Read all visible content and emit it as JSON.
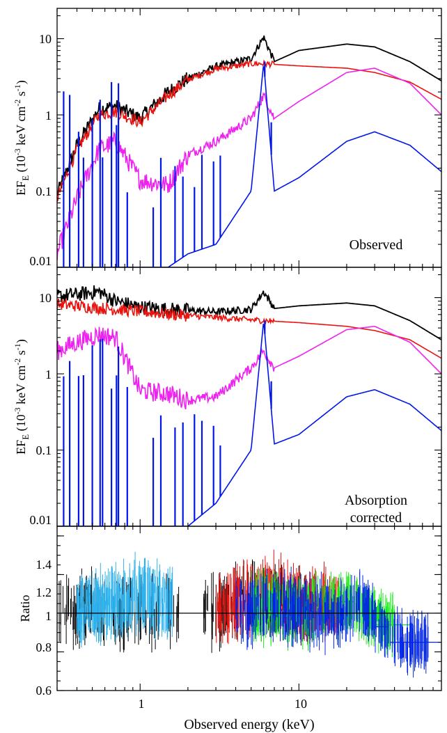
{
  "colors": {
    "total": "#000000",
    "powerlaw": "#e8140f",
    "reflection": "#ee22ee",
    "iron_component": "#0015e8",
    "data_black": "#000000",
    "data_red": "#e8140f",
    "data_lightblue": "#2eb2ee",
    "data_green": "#16ee16",
    "data_blue": "#0025e8"
  },
  "xaxis": {
    "label": "Observed energy (keV)",
    "ticks": [
      "1",
      "10"
    ],
    "scale": "log",
    "range": [
      0.3,
      79
    ]
  },
  "chart_data": [
    {
      "type": "line",
      "panel": "top",
      "annotation": "Observed",
      "ylabel_main": "EF",
      "ylabel_sub": "E",
      "ylabel_open": " (10",
      "ylabel_exp1": "-3",
      "ylabel_mid": " keV cm",
      "ylabel_exp2": "-2",
      "ylabel_mid2": " s",
      "ylabel_exp3": "-1",
      "ylabel_close": ")",
      "yscale": "log",
      "ylim": [
        0.01,
        25
      ],
      "yticks": [
        "10",
        "1",
        "0.1",
        "0.01"
      ],
      "x": [
        0.3,
        0.4,
        0.55,
        0.7,
        1.0,
        1.5,
        2.0,
        3.0,
        5.0,
        6.0,
        7.0,
        10,
        20,
        30,
        50,
        79
      ],
      "series": [
        {
          "values": [
            0.09,
            0.4,
            1.2,
            1.3,
            0.9,
            2.0,
            3.0,
            4.3,
            5.5,
            10.5,
            5.0,
            7.0,
            8.5,
            7.8,
            5.0,
            2.8
          ]
        },
        {
          "values": [
            0.08,
            0.35,
            1.0,
            1.1,
            0.8,
            1.8,
            2.9,
            4.0,
            4.7,
            4.7,
            4.6,
            4.4,
            4.1,
            3.6,
            2.7,
            1.6
          ]
        },
        {
          "values": [
            0.015,
            0.08,
            0.35,
            0.45,
            0.14,
            0.12,
            0.3,
            0.45,
            0.9,
            1.8,
            0.9,
            1.5,
            3.6,
            4.1,
            2.6,
            1.0
          ]
        },
        {
          "values": [
            0.01,
            0.01,
            0.01,
            0.01,
            0.01,
            0.01,
            0.015,
            0.02,
            0.1,
            4.8,
            0.1,
            0.15,
            0.45,
            0.6,
            0.4,
            0.18
          ]
        }
      ]
    },
    {
      "type": "line",
      "panel": "middle",
      "annotation_line1": "Absorption",
      "annotation_line2": "corrected",
      "ylabel_main": "EF",
      "ylabel_sub": "E",
      "ylabel_open": " (10",
      "ylabel_exp1": "-3",
      "ylabel_mid": " keV cm",
      "ylabel_exp2": "-2",
      "ylabel_mid2": " s",
      "ylabel_exp3": "-1",
      "ylabel_close": ")",
      "yscale": "log",
      "ylim": [
        0.01,
        25
      ],
      "yticks": [
        "10",
        "1",
        "0.1",
        "0.01"
      ],
      "x": [
        0.3,
        0.4,
        0.55,
        0.7,
        1.0,
        1.5,
        2.0,
        3.0,
        5.0,
        6.0,
        7.0,
        10,
        20,
        30,
        50,
        79
      ],
      "series": [
        {
          "values": [
            10.5,
            11.0,
            12.0,
            9.0,
            7.5,
            7.0,
            6.8,
            6.5,
            7.0,
            12.0,
            7.2,
            7.8,
            8.5,
            7.8,
            5.0,
            2.8
          ]
        },
        {
          "values": [
            8.2,
            7.8,
            7.3,
            7.0,
            6.6,
            6.1,
            5.8,
            5.5,
            5.1,
            5.0,
            4.9,
            4.7,
            4.2,
            3.7,
            2.8,
            1.6
          ]
        },
        {
          "values": [
            2.0,
            2.6,
            3.3,
            3.0,
            0.6,
            0.55,
            0.45,
            0.5,
            1.2,
            2.0,
            1.2,
            1.7,
            3.8,
            4.2,
            2.6,
            1.0
          ]
        },
        {
          "values": [
            0.01,
            0.01,
            0.01,
            0.01,
            0.01,
            0.01,
            0.01,
            0.02,
            0.1,
            5.0,
            0.12,
            0.16,
            0.5,
            0.62,
            0.4,
            0.18
          ]
        }
      ]
    },
    {
      "type": "scatter",
      "panel": "bottom",
      "ylabel": "Ratio",
      "yscale": "linear",
      "ylim": [
        0.6,
        1.45
      ],
      "yticks": [
        "1.4",
        "1.2",
        "1",
        "0.8",
        "0.6"
      ],
      "reference_line": 1.0,
      "series": [
        {
          "x": [
            0.3,
            0.5,
            0.7,
            1.0,
            1.3,
            1.7,
            2.5,
            4,
            6,
            9,
            12
          ],
          "values": [
            1.0,
            1.02,
            0.97,
            1.03,
            1.0,
            1.01,
            1.0,
            1.05,
            1.08,
            1.05,
            1.02
          ]
        },
        {
          "x": [
            3,
            5,
            7,
            10,
            14,
            18
          ],
          "values": [
            1.0,
            1.08,
            1.12,
            1.04,
            1.06,
            1.03
          ]
        },
        {
          "x": [
            0.4,
            0.6,
            0.9,
            1.2,
            1.6
          ],
          "values": [
            1.02,
            1.05,
            1.1,
            1.08,
            1.04
          ]
        },
        {
          "x": [
            5,
            10,
            15,
            20,
            28,
            40
          ],
          "values": [
            1.05,
            1.0,
            1.03,
            1.06,
            1.0,
            0.94
          ]
        },
        {
          "x": [
            4,
            8,
            12,
            18,
            25,
            33,
            45,
            65
          ],
          "values": [
            1.0,
            1.02,
            1.01,
            1.0,
            1.05,
            0.93,
            0.85,
            0.85
          ]
        }
      ]
    }
  ]
}
